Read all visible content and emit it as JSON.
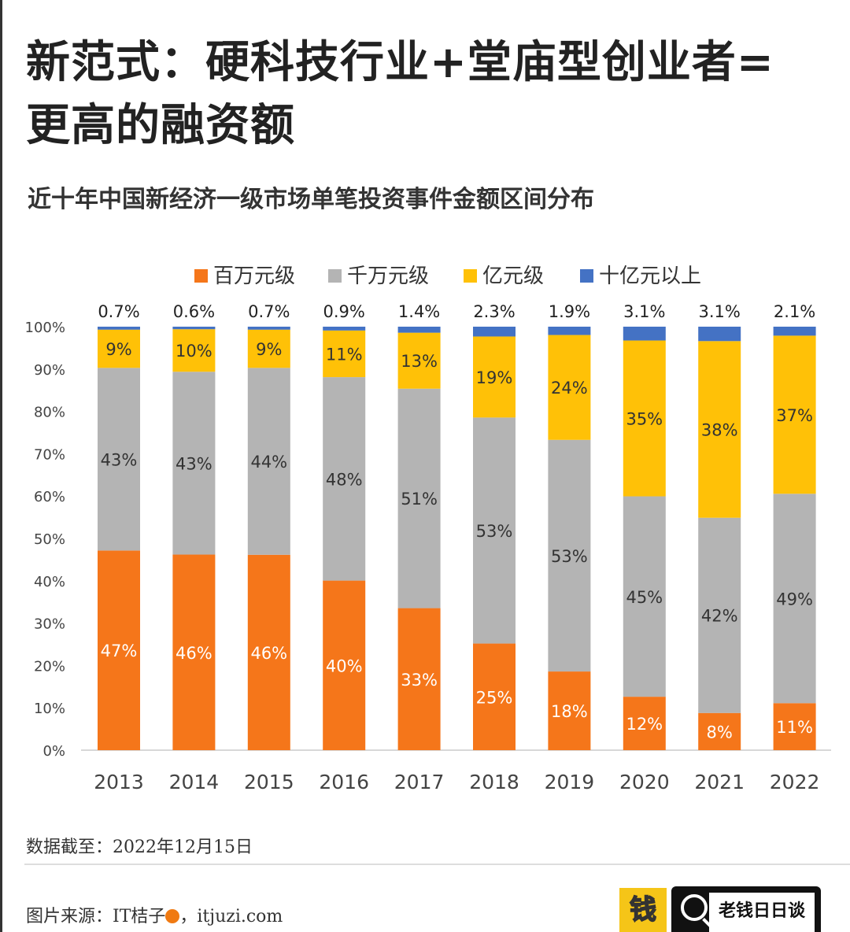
{
  "title_line1": "新范式：硬科技行业+堂庙型创业者=",
  "title_line2": "更高的融资额",
  "chart_data": {
    "type": "bar",
    "stacked": true,
    "title": "近十年中国新经济一级市场单笔投资事件金额区间分布",
    "categories": [
      "2013",
      "2014",
      "2015",
      "2016",
      "2017",
      "2018",
      "2019",
      "2020",
      "2021",
      "2022"
    ],
    "series": [
      {
        "name": "百万元级",
        "color": "#f5761a",
        "values": [
          47,
          46,
          46,
          40,
          33,
          25,
          18,
          12,
          8,
          11
        ],
        "labels": [
          "47%",
          "46%",
          "46%",
          "40%",
          "33%",
          "25%",
          "18%",
          "12%",
          "8%",
          "11%"
        ]
      },
      {
        "name": "千万元级",
        "color": "#b4b4b4",
        "values": [
          43,
          43,
          44,
          48,
          51,
          53,
          53,
          45,
          42,
          49
        ],
        "labels": [
          "43%",
          "43%",
          "44%",
          "48%",
          "51%",
          "53%",
          "53%",
          "45%",
          "42%",
          "49%"
        ]
      },
      {
        "name": "亿元级",
        "color": "#ffc107",
        "values": [
          9,
          10,
          9,
          11,
          13,
          19,
          24,
          35,
          38,
          37
        ],
        "labels": [
          "9%",
          "10%",
          "9%",
          "11%",
          "13%",
          "19%",
          "24%",
          "35%",
          "38%",
          "37%"
        ]
      },
      {
        "name": "十亿元以上",
        "color": "#4472c4",
        "values": [
          0.7,
          0.6,
          0.7,
          0.9,
          1.4,
          2.3,
          1.9,
          3.1,
          3.1,
          2.1
        ],
        "labels": [
          "0.7%",
          "0.6%",
          "0.7%",
          "0.9%",
          "1.4%",
          "2.3%",
          "1.9%",
          "3.1%",
          "3.1%",
          "2.1%"
        ]
      }
    ],
    "yticks": [
      "0%",
      "10%",
      "20%",
      "30%",
      "40%",
      "50%",
      "60%",
      "70%",
      "80%",
      "90%",
      "100%"
    ],
    "ylim": [
      0,
      100
    ],
    "legend": "top",
    "grid": false
  },
  "note": "数据截至：2022年12月15日",
  "source": "图片来源：IT桔子",
  "source_suffix": "，itjuzi.com",
  "logo_text": "钱",
  "search_text": "老钱日日谈"
}
